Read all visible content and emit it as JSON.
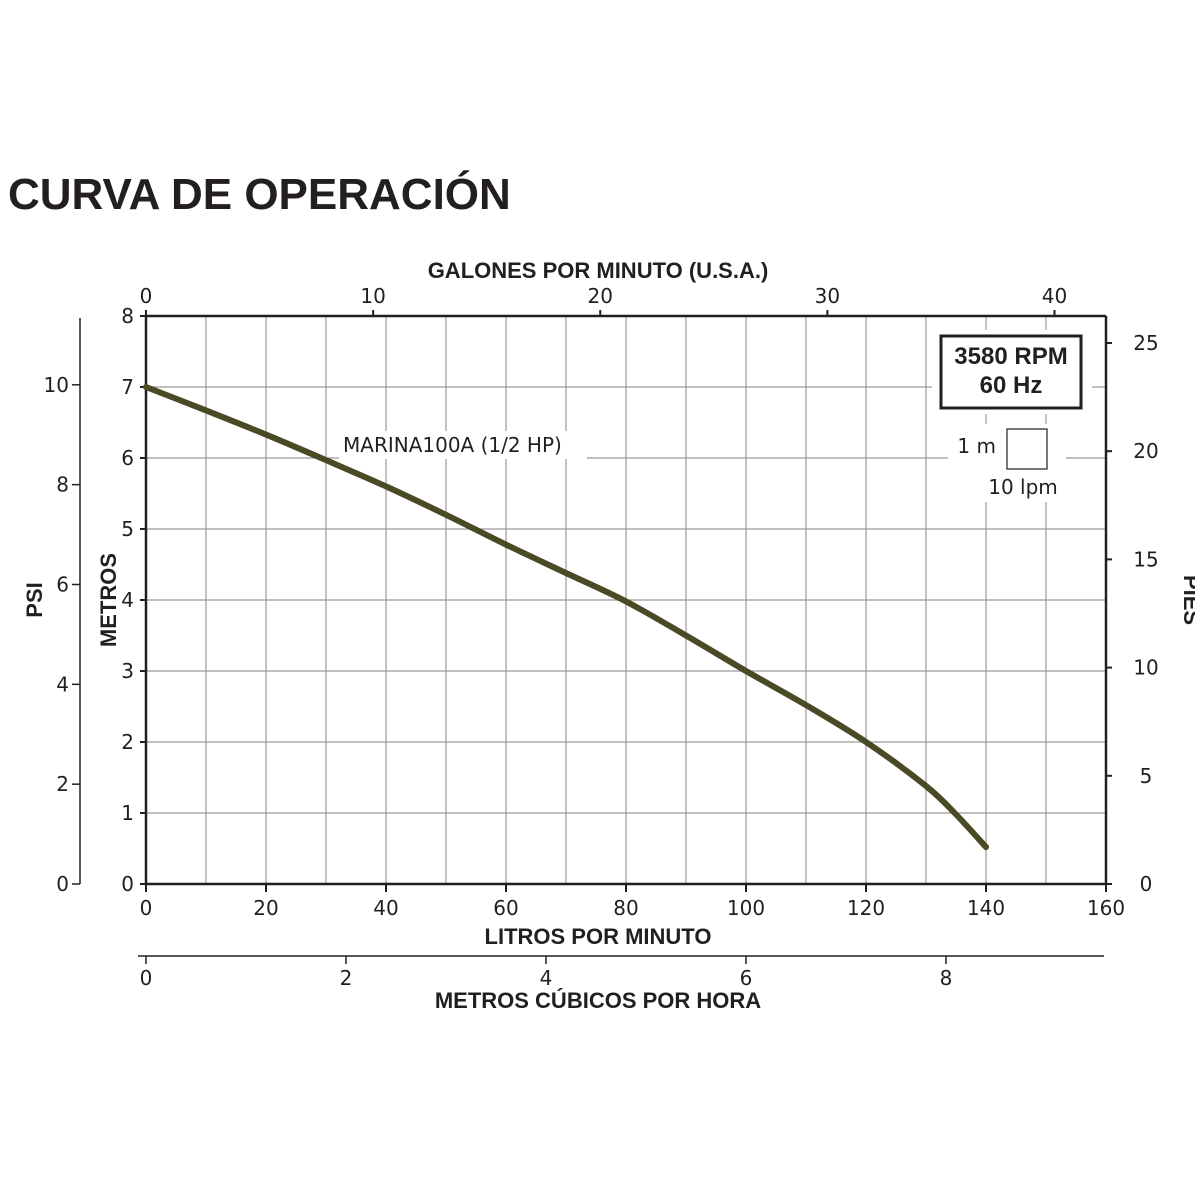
{
  "page": {
    "title": "CURVA DE OPERACIÓN"
  },
  "chart_data": {
    "type": "line",
    "title": "CURVA DE OPERACIÓN",
    "x_primary": {
      "label": "LITROS POR MINUTO",
      "range": [
        0,
        160
      ],
      "ticks": [
        0,
        20,
        40,
        60,
        80,
        100,
        120,
        140,
        160
      ]
    },
    "x_secondary_bottom": {
      "label": "METROS CÚBICOS POR HORA",
      "ticks": [
        0,
        2,
        4,
        6,
        8
      ]
    },
    "x_top": {
      "label": "GALONES POR MINUTO (U.S.A.)",
      "ticks": [
        0,
        10,
        20,
        30,
        40
      ]
    },
    "y_primary": {
      "label": "METROS",
      "range": [
        0,
        8
      ],
      "ticks": [
        0,
        1,
        2,
        3,
        4,
        5,
        6,
        7,
        8
      ]
    },
    "y_secondary_left": {
      "label": "PSI",
      "ticks": [
        0,
        2,
        4,
        6,
        8,
        10
      ]
    },
    "y_right": {
      "label": "PIES",
      "ticks": [
        0,
        5,
        10,
        15,
        20,
        25
      ]
    },
    "grid": true,
    "series": [
      {
        "name": "MARINA100A (1/2 HP)",
        "color": "#4b4a26",
        "x": [
          0,
          10,
          20,
          30,
          40,
          50,
          60,
          70,
          80,
          90,
          100,
          110,
          120,
          130,
          135,
          140
        ],
        "y": [
          7.0,
          6.67,
          6.33,
          5.97,
          5.6,
          5.2,
          4.78,
          4.38,
          3.98,
          3.5,
          3.0,
          2.52,
          2.0,
          1.38,
          0.98,
          0.52
        ]
      }
    ],
    "annotations": {
      "speed_line1": "3580 RPM",
      "speed_line2": "60 Hz",
      "scale_height": "1 m",
      "scale_flow": "10 lpm"
    }
  }
}
